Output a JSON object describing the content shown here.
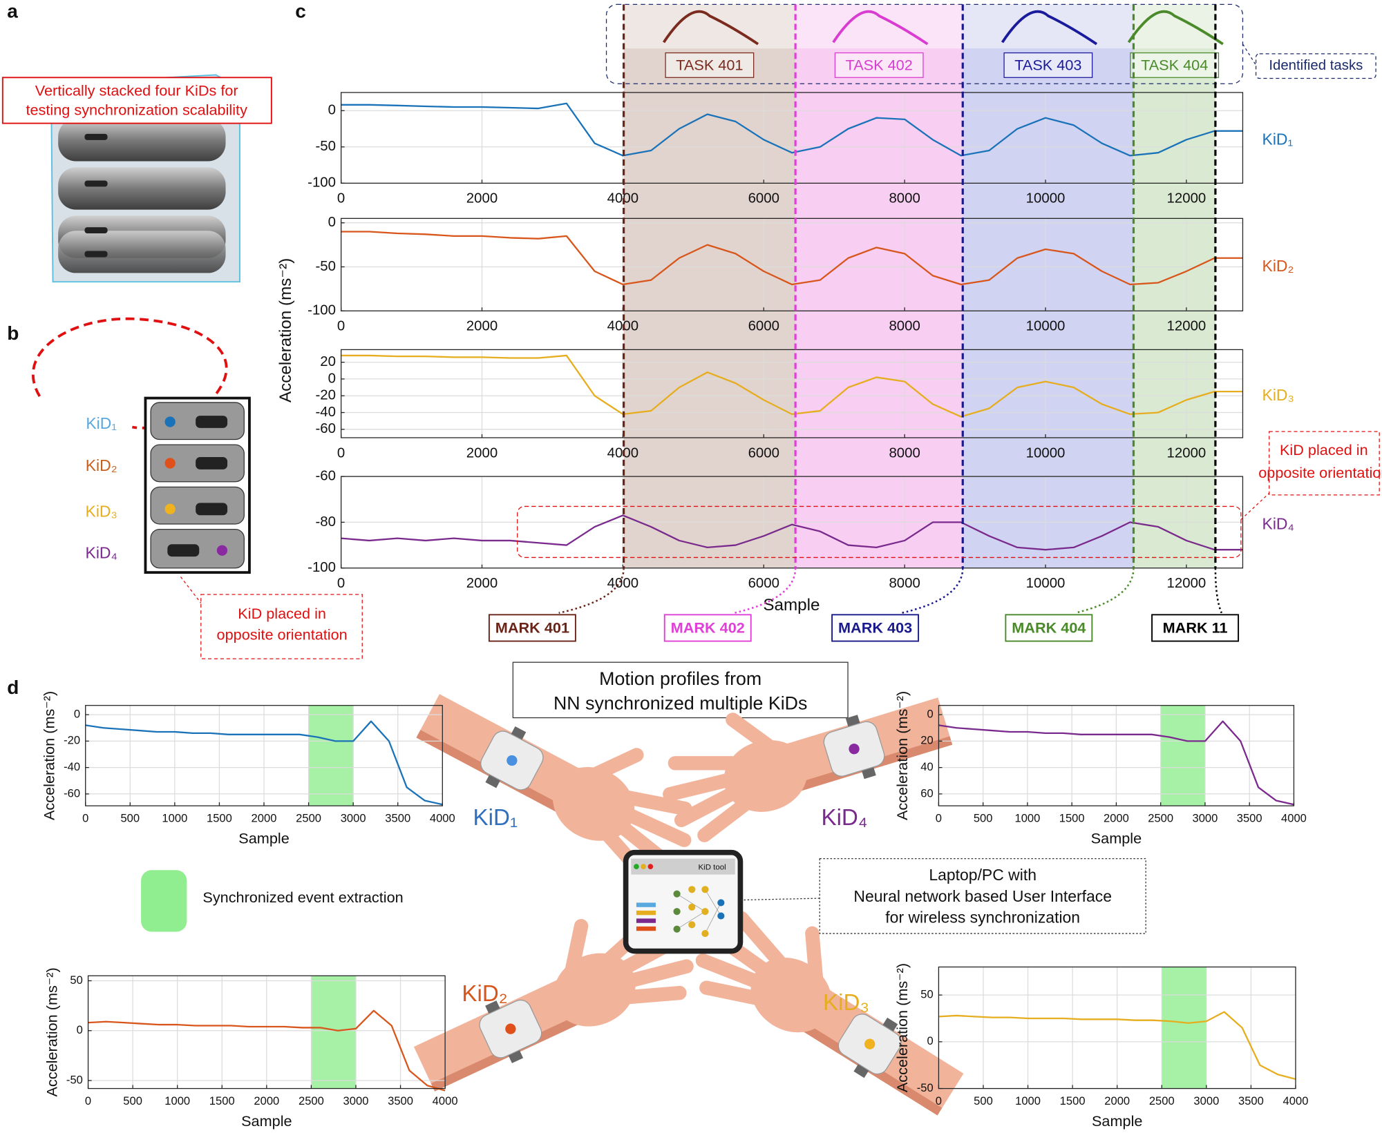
{
  "panel_labels": [
    "a",
    "b",
    "c",
    "d"
  ],
  "panel_a": {
    "annotation": [
      "Vertically stacked four KiDs for",
      "testing synchronization scalability"
    ]
  },
  "panel_b": {
    "labels": [
      "KiD₁",
      "KiD₂",
      "KiD₃",
      "KiD₄"
    ],
    "annotation": [
      "KiD placed in",
      "opposite orientation"
    ]
  },
  "panel_c": {
    "ylabel": "Acceleration (ms⁻²)",
    "xlabel": "Sample",
    "tasks_label": "Identified tasks",
    "annotation": [
      "KiD placed in",
      "opposite orientation"
    ],
    "tasks": [
      {
        "label": "TASK 401",
        "start": 4012,
        "end": 6450,
        "color": "#7b2a1e",
        "fill": "#c9b0a6"
      },
      {
        "label": "TASK 402",
        "start": 6450,
        "end": 8825,
        "color": "#d83cd0",
        "fill": "#f3a6e8"
      },
      {
        "label": "TASK 403",
        "start": 8825,
        "end": 11250,
        "color": "#1a1a9c",
        "fill": "#a9aee6"
      },
      {
        "label": "TASK 404",
        "start": 11250,
        "end": 12412,
        "color": "#4a8a2a",
        "fill": "#bcd9ad"
      }
    ],
    "marks": [
      {
        "label": "MARK 401",
        "x": 4012,
        "color": "#6b2418"
      },
      {
        "label": "MARK 402",
        "x": 6450,
        "color": "#e040d8"
      },
      {
        "label": "MARK 403",
        "x": 8825,
        "color": "#1a1a8c"
      },
      {
        "label": "MARK 404",
        "x": 11250,
        "color": "#4a8a2a"
      },
      {
        "label": "MARK 11",
        "x": 12412,
        "color": "#000000"
      }
    ]
  },
  "panel_d": {
    "title": [
      "Motion profiles from",
      "NN synchronized multiple KiDs"
    ],
    "legend": "Synchronized event extraction",
    "legend_color": "#90ee90",
    "device_note": [
      "Laptop/PC with",
      "Neural network based User Interface",
      "for wireless synchronization"
    ],
    "app_title": "KiD tool",
    "hand_labels": [
      {
        "text": "KiD₁",
        "color": "#2f6fbf"
      },
      {
        "text": "KiD₄",
        "color": "#7a2a8c"
      },
      {
        "text": "KiD₂",
        "color": "#d8561b"
      },
      {
        "text": "KiD₃",
        "color": "#e6ad1e"
      }
    ]
  },
  "chart_data": [
    {
      "type": "line",
      "x": [
        0,
        400,
        800,
        1200,
        1600,
        2000,
        2400,
        2800,
        3200,
        3600,
        4000,
        4400,
        4800,
        5200,
        5600,
        6000,
        6400,
        6800,
        7200,
        7600,
        8000,
        8400,
        8800,
        9200,
        9600,
        10000,
        10400,
        10800,
        11200,
        11600,
        12000,
        12400,
        12800
      ],
      "series": [
        {
          "name": "KiD₁",
          "color": "#1a72b8",
          "values": [
            8,
            8,
            7,
            6,
            5,
            5,
            4,
            3,
            10,
            -45,
            -62,
            -55,
            -25,
            -5,
            -15,
            -40,
            -58,
            -50,
            -25,
            -10,
            -12,
            -40,
            -62,
            -55,
            -25,
            -10,
            -20,
            -45,
            -62,
            -58,
            -40,
            -28,
            -28
          ]
        }
      ],
      "xlim": [
        0,
        12800
      ],
      "ylim": [
        -100,
        25
      ],
      "xticks": [
        0,
        2000,
        4000,
        6000,
        8000,
        10000,
        12000
      ],
      "yticks": [
        -100,
        -50,
        0
      ],
      "grid": true
    },
    {
      "type": "line",
      "x": [
        0,
        400,
        800,
        1200,
        1600,
        2000,
        2400,
        2800,
        3200,
        3600,
        4000,
        4400,
        4800,
        5200,
        5600,
        6000,
        6400,
        6800,
        7200,
        7600,
        8000,
        8400,
        8800,
        9200,
        9600,
        10000,
        10400,
        10800,
        11200,
        11600,
        12000,
        12400,
        12800
      ],
      "series": [
        {
          "name": "KiD₂",
          "color": "#d8561b",
          "values": [
            -10,
            -10,
            -12,
            -13,
            -15,
            -15,
            -17,
            -18,
            -15,
            -55,
            -70,
            -65,
            -40,
            -25,
            -35,
            -55,
            -70,
            -65,
            -40,
            -28,
            -35,
            -60,
            -70,
            -65,
            -40,
            -30,
            -35,
            -55,
            -70,
            -68,
            -55,
            -40,
            -40
          ]
        }
      ],
      "xlim": [
        0,
        12800
      ],
      "ylim": [
        -100,
        5
      ],
      "xticks": [
        0,
        2000,
        4000,
        6000,
        8000,
        10000,
        12000
      ],
      "yticks": [
        -100,
        -50,
        0
      ],
      "grid": true
    },
    {
      "type": "line",
      "x": [
        0,
        400,
        800,
        1200,
        1600,
        2000,
        2400,
        2800,
        3200,
        3600,
        4000,
        4400,
        4800,
        5200,
        5600,
        6000,
        6400,
        6800,
        7200,
        7600,
        8000,
        8400,
        8800,
        9200,
        9600,
        10000,
        10400,
        10800,
        11200,
        11600,
        12000,
        12400,
        12800
      ],
      "series": [
        {
          "name": "KiD₃",
          "color": "#e6ad1e",
          "values": [
            28,
            28,
            27,
            27,
            26,
            26,
            25,
            25,
            28,
            -20,
            -42,
            -38,
            -10,
            8,
            -5,
            -25,
            -42,
            -38,
            -10,
            2,
            -3,
            -30,
            -45,
            -35,
            -10,
            -3,
            -10,
            -30,
            -42,
            -40,
            -25,
            -15,
            -15
          ]
        }
      ],
      "xlim": [
        0,
        12800
      ],
      "ylim": [
        -70,
        35
      ],
      "xticks": [
        0,
        2000,
        4000,
        6000,
        8000,
        10000,
        12000
      ],
      "yticks": [
        -60,
        -40,
        -20,
        0,
        20
      ],
      "grid": true
    },
    {
      "type": "line",
      "x": [
        0,
        400,
        800,
        1200,
        1600,
        2000,
        2400,
        2800,
        3200,
        3600,
        4000,
        4400,
        4800,
        5200,
        5600,
        6000,
        6400,
        6800,
        7200,
        7600,
        8000,
        8400,
        8800,
        9200,
        9600,
        10000,
        10400,
        10800,
        11200,
        11600,
        12000,
        12400,
        12800
      ],
      "series": [
        {
          "name": "KiD₄",
          "color": "#7a2a8c",
          "values": [
            -87,
            -88,
            -87,
            -88,
            -87,
            -88,
            -88,
            -89,
            -90,
            -82,
            -77,
            -82,
            -88,
            -91,
            -90,
            -86,
            -81,
            -84,
            -90,
            -91,
            -88,
            -80,
            -80,
            -86,
            -91,
            -92,
            -91,
            -86,
            -80,
            -82,
            -88,
            -92,
            -92
          ]
        }
      ],
      "xlim": [
        0,
        12800
      ],
      "ylim": [
        -100,
        -60
      ],
      "xticks": [
        0,
        2000,
        4000,
        6000,
        8000,
        10000,
        12000
      ],
      "yticks": [
        -100,
        -80,
        -60
      ],
      "grid": true
    },
    {
      "type": "line",
      "x": [
        0,
        200,
        400,
        600,
        800,
        1000,
        1200,
        1400,
        1600,
        1800,
        2000,
        2200,
        2400,
        2600,
        2800,
        3000,
        3200,
        3400,
        3600,
        3800,
        4000
      ],
      "values": [
        -8,
        -10,
        -11,
        -12,
        -13,
        -13,
        -14,
        -14,
        -15,
        -15,
        -15,
        -15,
        -15,
        -17,
        -20,
        -20,
        -5,
        -20,
        -55,
        -65,
        -68
      ],
      "color": "#1a72b8",
      "xlim": [
        0,
        4000
      ],
      "ylim": [
        -69,
        7
      ],
      "xticks": [
        0,
        500,
        1000,
        1500,
        2000,
        2500,
        3000,
        3500,
        4000
      ],
      "yticks": [
        -60,
        -40,
        -20,
        0
      ],
      "grid": true,
      "highlight": [
        2500,
        3000
      ],
      "highlight_color": "#90ee90",
      "xlabel": "Sample",
      "ylabel": "Acceleration (ms⁻²)"
    },
    {
      "type": "line",
      "x": [
        0,
        200,
        400,
        600,
        800,
        1000,
        1200,
        1400,
        1600,
        1800,
        2000,
        2200,
        2400,
        2600,
        2800,
        3000,
        3200,
        3400,
        3600,
        3800,
        4000
      ],
      "values": [
        8,
        10,
        11,
        12,
        13,
        13,
        14,
        14,
        15,
        15,
        15,
        15,
        15,
        17,
        20,
        20,
        5,
        20,
        55,
        65,
        68
      ],
      "color": "#7a2a8c",
      "xlim": [
        0,
        4000
      ],
      "ylim": [
        69,
        -7
      ],
      "xticks": [
        0,
        500,
        1000,
        1500,
        2000,
        2500,
        3000,
        3500,
        4000
      ],
      "yticks": [
        0,
        20,
        40,
        60
      ],
      "grid": true,
      "highlight": [
        2500,
        3000
      ],
      "highlight_color": "#90ee90",
      "xlabel": "Sample",
      "ylabel": "Acceleration (ms⁻²)"
    },
    {
      "type": "line",
      "x": [
        0,
        200,
        400,
        600,
        800,
        1000,
        1200,
        1400,
        1600,
        1800,
        2000,
        2200,
        2400,
        2600,
        2800,
        3000,
        3200,
        3400,
        3600,
        3800,
        4000
      ],
      "values": [
        8,
        9,
        8,
        7,
        6,
        6,
        5,
        5,
        5,
        4,
        4,
        4,
        3,
        3,
        0,
        2,
        20,
        5,
        -40,
        -55,
        -60
      ],
      "color": "#d8561b",
      "xlim": [
        0,
        4000
      ],
      "ylim": [
        -58,
        55
      ],
      "xticks": [
        0,
        500,
        1000,
        1500,
        2000,
        2500,
        3000,
        3500,
        4000
      ],
      "yticks": [
        -50,
        0,
        50
      ],
      "grid": true,
      "highlight": [
        2500,
        3000
      ],
      "highlight_color": "#90ee90",
      "xlabel": "Sample",
      "ylabel": "Acceleration (ms⁻²)"
    },
    {
      "type": "line",
      "x": [
        0,
        200,
        400,
        600,
        800,
        1000,
        1200,
        1400,
        1600,
        1800,
        2000,
        2200,
        2400,
        2600,
        2800,
        3000,
        3200,
        3400,
        3600,
        3800,
        4000
      ],
      "values": [
        27,
        28,
        27,
        26,
        26,
        25,
        25,
        25,
        24,
        24,
        24,
        23,
        23,
        22,
        20,
        22,
        32,
        15,
        -25,
        -35,
        -40
      ],
      "color": "#e6ad1e",
      "xlim": [
        0,
        4000
      ],
      "ylim": [
        -50,
        80
      ],
      "xticks": [
        0,
        500,
        1000,
        1500,
        2000,
        2500,
        3000,
        3500,
        4000
      ],
      "yticks": [
        -50,
        0,
        50
      ],
      "grid": true,
      "highlight": [
        2500,
        3000
      ],
      "highlight_color": "#90ee90",
      "xlabel": "Sample",
      "ylabel": "Acceleration (ms⁻²)"
    }
  ]
}
